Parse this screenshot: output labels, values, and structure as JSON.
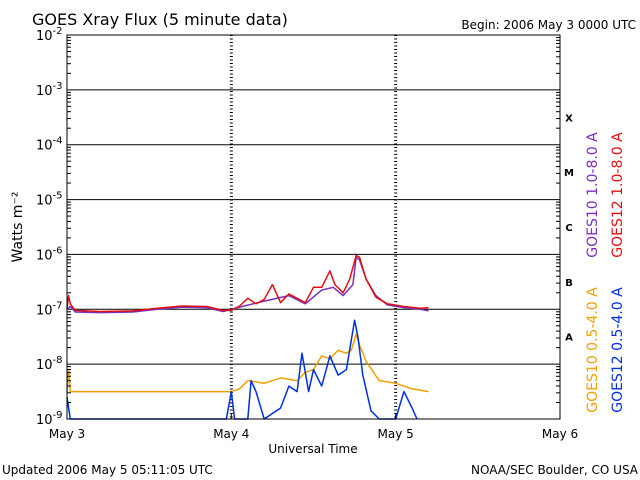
{
  "chart_data": {
    "type": "line",
    "title": "GOES Xray Flux (5 minute data)",
    "begin_text": "Begin:  2006 May 3 0000 UTC",
    "xlabel": "Universal Time",
    "ylabel": "Watts m⁻²",
    "yscale": "log",
    "ylim_exponent": [
      -9,
      -2
    ],
    "y_ticks": [
      {
        "exp": -2,
        "label": "-2"
      },
      {
        "exp": -3,
        "label": "-3"
      },
      {
        "exp": -4,
        "label": "-4"
      },
      {
        "exp": -5,
        "label": "-5"
      },
      {
        "exp": -6,
        "label": "-6"
      },
      {
        "exp": -7,
        "label": "-7"
      },
      {
        "exp": -8,
        "label": "-8"
      },
      {
        "exp": -9,
        "label": "-9"
      }
    ],
    "y_tick_base": "10",
    "xlim_days": [
      0,
      3
    ],
    "x_ticks": [
      {
        "day": 0,
        "label": "May 3"
      },
      {
        "day": 1,
        "label": "May 4"
      },
      {
        "day": 2,
        "label": "May 5"
      },
      {
        "day": 3,
        "label": "May 6"
      }
    ],
    "flare_classes": [
      {
        "label": "X",
        "exp": -3.5
      },
      {
        "label": "M",
        "exp": -4.5
      },
      {
        "label": "C",
        "exp": -5.5
      },
      {
        "label": "B",
        "exp": -6.5
      },
      {
        "label": "A",
        "exp": -7.5
      }
    ],
    "grid": "horizontal at each decade",
    "legend": "right side, vertical text",
    "series": [
      {
        "name": "GOES10 1.0-8.0 A",
        "color": "#7a2fbf",
        "points": [
          [
            0,
            -7.0
          ],
          [
            0.02,
            -6.95
          ],
          [
            0.05,
            -7.05
          ],
          [
            0.2,
            -7.06
          ],
          [
            0.4,
            -7.05
          ],
          [
            0.55,
            -7.0
          ],
          [
            0.7,
            -6.96
          ],
          [
            0.85,
            -6.97
          ],
          [
            0.95,
            -7.04
          ],
          [
            1.05,
            -6.96
          ],
          [
            1.2,
            -6.85
          ],
          [
            1.35,
            -6.75
          ],
          [
            1.45,
            -6.9
          ],
          [
            1.55,
            -6.65
          ],
          [
            1.62,
            -6.6
          ],
          [
            1.68,
            -6.75
          ],
          [
            1.74,
            -6.55
          ],
          [
            1.76,
            -6.05
          ],
          [
            1.78,
            -6.1
          ],
          [
            1.82,
            -6.45
          ],
          [
            1.88,
            -6.75
          ],
          [
            1.95,
            -6.92
          ],
          [
            2.05,
            -6.97
          ],
          [
            2.15,
            -7.0
          ],
          [
            2.2,
            -7.03
          ]
        ]
      },
      {
        "name": "GOES12 1.0-8.0 A",
        "color": "#e01010",
        "points": [
          [
            0,
            -7.0
          ],
          [
            0.01,
            -6.75
          ],
          [
            0.02,
            -6.9
          ],
          [
            0.05,
            -7.02
          ],
          [
            0.2,
            -7.04
          ],
          [
            0.4,
            -7.03
          ],
          [
            0.55,
            -6.98
          ],
          [
            0.7,
            -6.94
          ],
          [
            0.85,
            -6.95
          ],
          [
            0.95,
            -7.02
          ],
          [
            1.0,
            -7.02
          ],
          [
            1.05,
            -6.94
          ],
          [
            1.1,
            -6.8
          ],
          [
            1.15,
            -6.9
          ],
          [
            1.2,
            -6.82
          ],
          [
            1.25,
            -6.55
          ],
          [
            1.3,
            -6.88
          ],
          [
            1.35,
            -6.72
          ],
          [
            1.45,
            -6.88
          ],
          [
            1.5,
            -6.6
          ],
          [
            1.55,
            -6.6
          ],
          [
            1.6,
            -6.3
          ],
          [
            1.63,
            -6.55
          ],
          [
            1.68,
            -6.7
          ],
          [
            1.72,
            -6.45
          ],
          [
            1.76,
            -6.02
          ],
          [
            1.78,
            -6.05
          ],
          [
            1.82,
            -6.45
          ],
          [
            1.88,
            -6.78
          ],
          [
            1.95,
            -6.9
          ],
          [
            2.05,
            -6.95
          ],
          [
            2.15,
            -6.98
          ],
          [
            2.2,
            -6.97
          ]
        ]
      },
      {
        "name": "GOES10 0.5-4.0 A",
        "color": "#f0a000",
        "points": [
          [
            0,
            -8.5
          ],
          [
            0.01,
            -8.1
          ],
          [
            0.02,
            -8.5
          ],
          [
            0.5,
            -8.5
          ],
          [
            1.0,
            -8.5
          ],
          [
            1.05,
            -8.45
          ],
          [
            1.1,
            -8.3
          ],
          [
            1.2,
            -8.35
          ],
          [
            1.3,
            -8.25
          ],
          [
            1.4,
            -8.3
          ],
          [
            1.45,
            -8.15
          ],
          [
            1.5,
            -8.1
          ],
          [
            1.55,
            -7.85
          ],
          [
            1.6,
            -7.9
          ],
          [
            1.65,
            -7.75
          ],
          [
            1.7,
            -7.8
          ],
          [
            1.73,
            -7.75
          ],
          [
            1.76,
            -7.45
          ],
          [
            1.78,
            -7.65
          ],
          [
            1.82,
            -7.95
          ],
          [
            1.9,
            -8.3
          ],
          [
            2.0,
            -8.35
          ],
          [
            2.1,
            -8.45
          ],
          [
            2.2,
            -8.5
          ]
        ]
      },
      {
        "name": "GOES12 0.5-4.0 A",
        "color": "#0030e0",
        "points": [
          [
            0.0,
            -8.6
          ],
          [
            0.02,
            -9.0
          ],
          [
            0.97,
            -9.0
          ],
          [
            1.0,
            -8.5
          ],
          [
            1.02,
            -9.0
          ],
          [
            1.1,
            -9.0
          ],
          [
            1.12,
            -8.3
          ],
          [
            1.15,
            -8.5
          ],
          [
            1.2,
            -9.0
          ],
          [
            1.3,
            -8.8
          ],
          [
            1.35,
            -8.4
          ],
          [
            1.4,
            -8.5
          ],
          [
            1.43,
            -7.8
          ],
          [
            1.47,
            -8.5
          ],
          [
            1.5,
            -8.1
          ],
          [
            1.55,
            -8.4
          ],
          [
            1.6,
            -7.85
          ],
          [
            1.65,
            -8.2
          ],
          [
            1.7,
            -8.1
          ],
          [
            1.75,
            -7.2
          ],
          [
            1.77,
            -7.5
          ],
          [
            1.8,
            -8.2
          ],
          [
            1.85,
            -8.85
          ],
          [
            1.9,
            -9.0
          ],
          [
            2.0,
            -9.0
          ],
          [
            2.05,
            -8.5
          ],
          [
            2.1,
            -8.8
          ],
          [
            2.13,
            -9.0
          ]
        ]
      }
    ]
  },
  "footer": {
    "updated": "Updated 2006 May  5 05:11:05 UTC",
    "source": "NOAA/SEC Boulder, CO USA"
  }
}
